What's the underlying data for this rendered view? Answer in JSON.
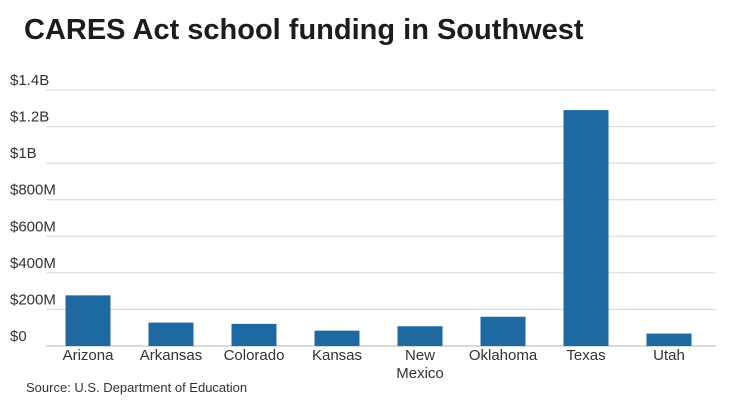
{
  "title": "CARES Act school funding in Southwest",
  "source": "Source: U.S. Department of Education",
  "colors": {
    "bar": "#1f69a3",
    "grid": "#d6d6d6",
    "axis": "#b5b5b5"
  },
  "chart_data": {
    "type": "bar",
    "title": "CARES Act school funding in Southwest",
    "xlabel": "",
    "ylabel": "",
    "categories": [
      "Arizona",
      "Arkansas",
      "Colorado",
      "Kansas",
      "New Mexico",
      "Oklahoma",
      "Texas",
      "Utah"
    ],
    "category_lines": [
      [
        "Arizona"
      ],
      [
        "Arkansas"
      ],
      [
        "Colorado"
      ],
      [
        "Kansas"
      ],
      [
        "New",
        "Mexico"
      ],
      [
        "Oklahoma"
      ],
      [
        "Texas"
      ],
      [
        "Utah"
      ]
    ],
    "values_millions": [
      277,
      128,
      121,
      84,
      108,
      160,
      1290,
      68
    ],
    "ylim": [
      0,
      1400
    ],
    "yticks": [
      0,
      200,
      400,
      600,
      800,
      1000,
      1200,
      1400
    ],
    "ytick_labels": [
      "$0",
      "$200M",
      "$400M",
      "$600M",
      "$800M",
      "$1B",
      "$1.2B",
      "$1.4B"
    ],
    "grid": true,
    "legend": "none"
  }
}
